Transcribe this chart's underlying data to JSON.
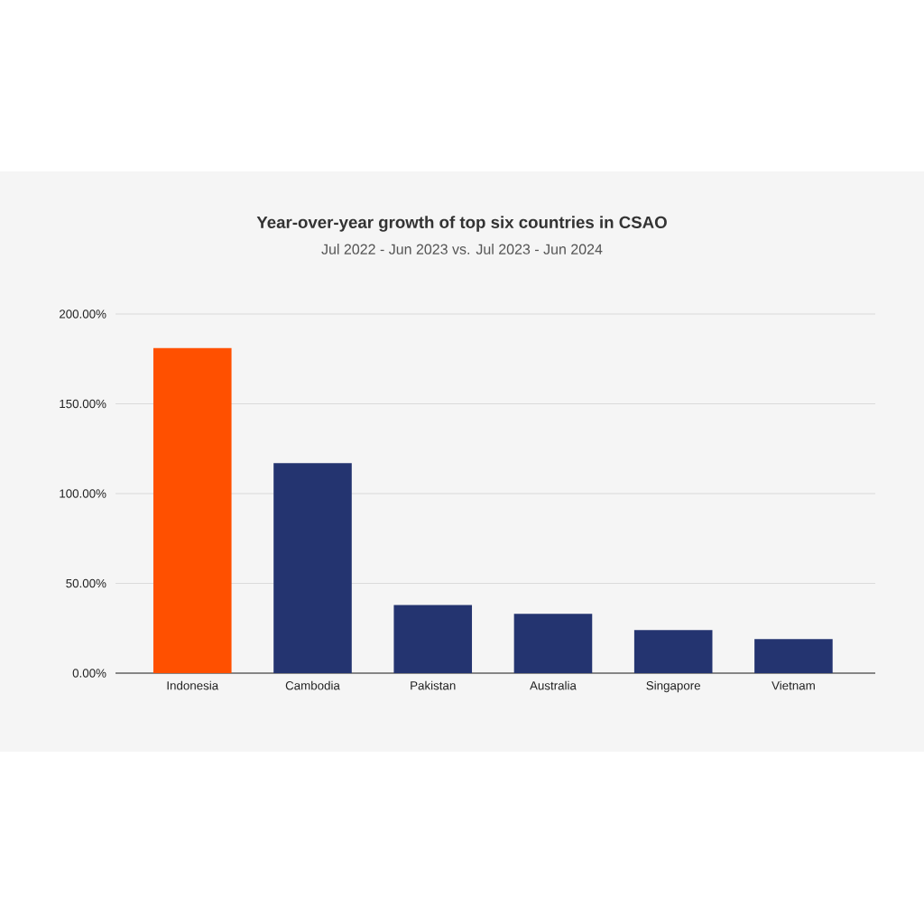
{
  "chart_data": {
    "type": "bar",
    "title": "Year-over-year growth of top six countries in CSAO",
    "subtitle": "Jul 2022 - Jun 2023 vs. Jul 2023 - Jun 2024",
    "categories": [
      "Indonesia",
      "Cambodia",
      "Pakistan",
      "Australia",
      "Singapore",
      "Vietnam"
    ],
    "values": [
      181,
      117,
      38,
      33,
      24,
      19
    ],
    "colors": [
      "#ff5000",
      "#243470",
      "#243470",
      "#243470",
      "#243470",
      "#243470"
    ],
    "ylim": [
      0,
      200
    ],
    "yticks": [
      {
        "value": 0,
        "label": "0.00%"
      },
      {
        "value": 50,
        "label": "50.00%"
      },
      {
        "value": 100,
        "label": "100.00%"
      },
      {
        "value": 150,
        "label": "150.00%"
      },
      {
        "value": 200,
        "label": "200.00%"
      }
    ],
    "grid": "y"
  }
}
